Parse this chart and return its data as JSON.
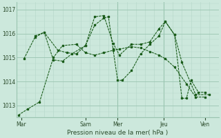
{
  "xlabel": "Pression niveau de la mer( hPa )",
  "bg_color": "#cce8dc",
  "grid_color_major": "#99c4b0",
  "grid_color_minor": "#b8d9cc",
  "line_color": "#1a5c1a",
  "ylim": [
    1012.5,
    1017.3
  ],
  "yticks": [
    1013,
    1014,
    1015,
    1016,
    1017
  ],
  "xlim": [
    0,
    22
  ],
  "day_labels": [
    "Mar",
    "Sam",
    "Mer",
    "Jeu",
    "Ven"
  ],
  "day_positions": [
    0.5,
    7.5,
    11.0,
    16.0,
    20.5
  ],
  "vline_major": [
    0.5,
    7.5,
    11.0,
    16.0,
    20.5
  ],
  "lines": [
    [
      [
        0.2,
        1012.6
      ],
      [
        1.2,
        1012.85
      ],
      [
        2.5,
        1013.15
      ],
      [
        4.0,
        1015.0
      ],
      [
        5.0,
        1015.5
      ],
      [
        6.5,
        1015.55
      ],
      [
        7.5,
        1015.2
      ],
      [
        8.5,
        1015.1
      ],
      [
        9.5,
        1015.2
      ],
      [
        10.5,
        1015.3
      ],
      [
        11.2,
        1015.35
      ],
      [
        12.5,
        1015.45
      ],
      [
        13.5,
        1015.4
      ],
      [
        14.5,
        1015.25
      ],
      [
        15.5,
        1015.1
      ],
      [
        16.2,
        1014.95
      ],
      [
        17.2,
        1014.6
      ],
      [
        18.5,
        1013.9
      ],
      [
        19.5,
        1013.35
      ],
      [
        20.5,
        1013.35
      ]
    ],
    [
      [
        0.8,
        1014.95
      ],
      [
        2.0,
        1015.85
      ],
      [
        3.0,
        1016.05
      ],
      [
        4.5,
        1015.3
      ],
      [
        5.5,
        1015.2
      ],
      [
        6.5,
        1015.15
      ],
      [
        7.5,
        1015.5
      ],
      [
        8.5,
        1016.35
      ],
      [
        9.5,
        1016.65
      ],
      [
        10.0,
        1016.7
      ],
      [
        10.5,
        1015.35
      ],
      [
        11.0,
        1014.05
      ],
      [
        11.5,
        1014.05
      ],
      [
        12.5,
        1014.45
      ],
      [
        13.5,
        1015.15
      ],
      [
        14.5,
        1015.55
      ],
      [
        15.5,
        1015.9
      ],
      [
        16.2,
        1016.5
      ],
      [
        17.2,
        1015.95
      ],
      [
        18.0,
        1013.3
      ],
      [
        18.5,
        1013.3
      ],
      [
        19.0,
        1014.05
      ],
      [
        19.8,
        1013.55
      ],
      [
        20.5,
        1013.55
      ]
    ],
    [
      [
        2.0,
        1015.9
      ],
      [
        3.0,
        1016.05
      ],
      [
        4.0,
        1014.9
      ],
      [
        5.0,
        1014.85
      ],
      [
        6.0,
        1015.15
      ],
      [
        7.5,
        1015.5
      ],
      [
        8.5,
        1016.7
      ],
      [
        9.5,
        1016.75
      ],
      [
        10.5,
        1015.6
      ],
      [
        11.2,
        1015.1
      ],
      [
        12.5,
        1015.55
      ],
      [
        13.5,
        1015.55
      ],
      [
        14.5,
        1015.65
      ],
      [
        15.5,
        1016.2
      ],
      [
        16.2,
        1016.5
      ],
      [
        17.2,
        1015.95
      ],
      [
        18.0,
        1014.8
      ],
      [
        19.5,
        1013.45
      ],
      [
        21.0,
        1013.45
      ]
    ]
  ]
}
